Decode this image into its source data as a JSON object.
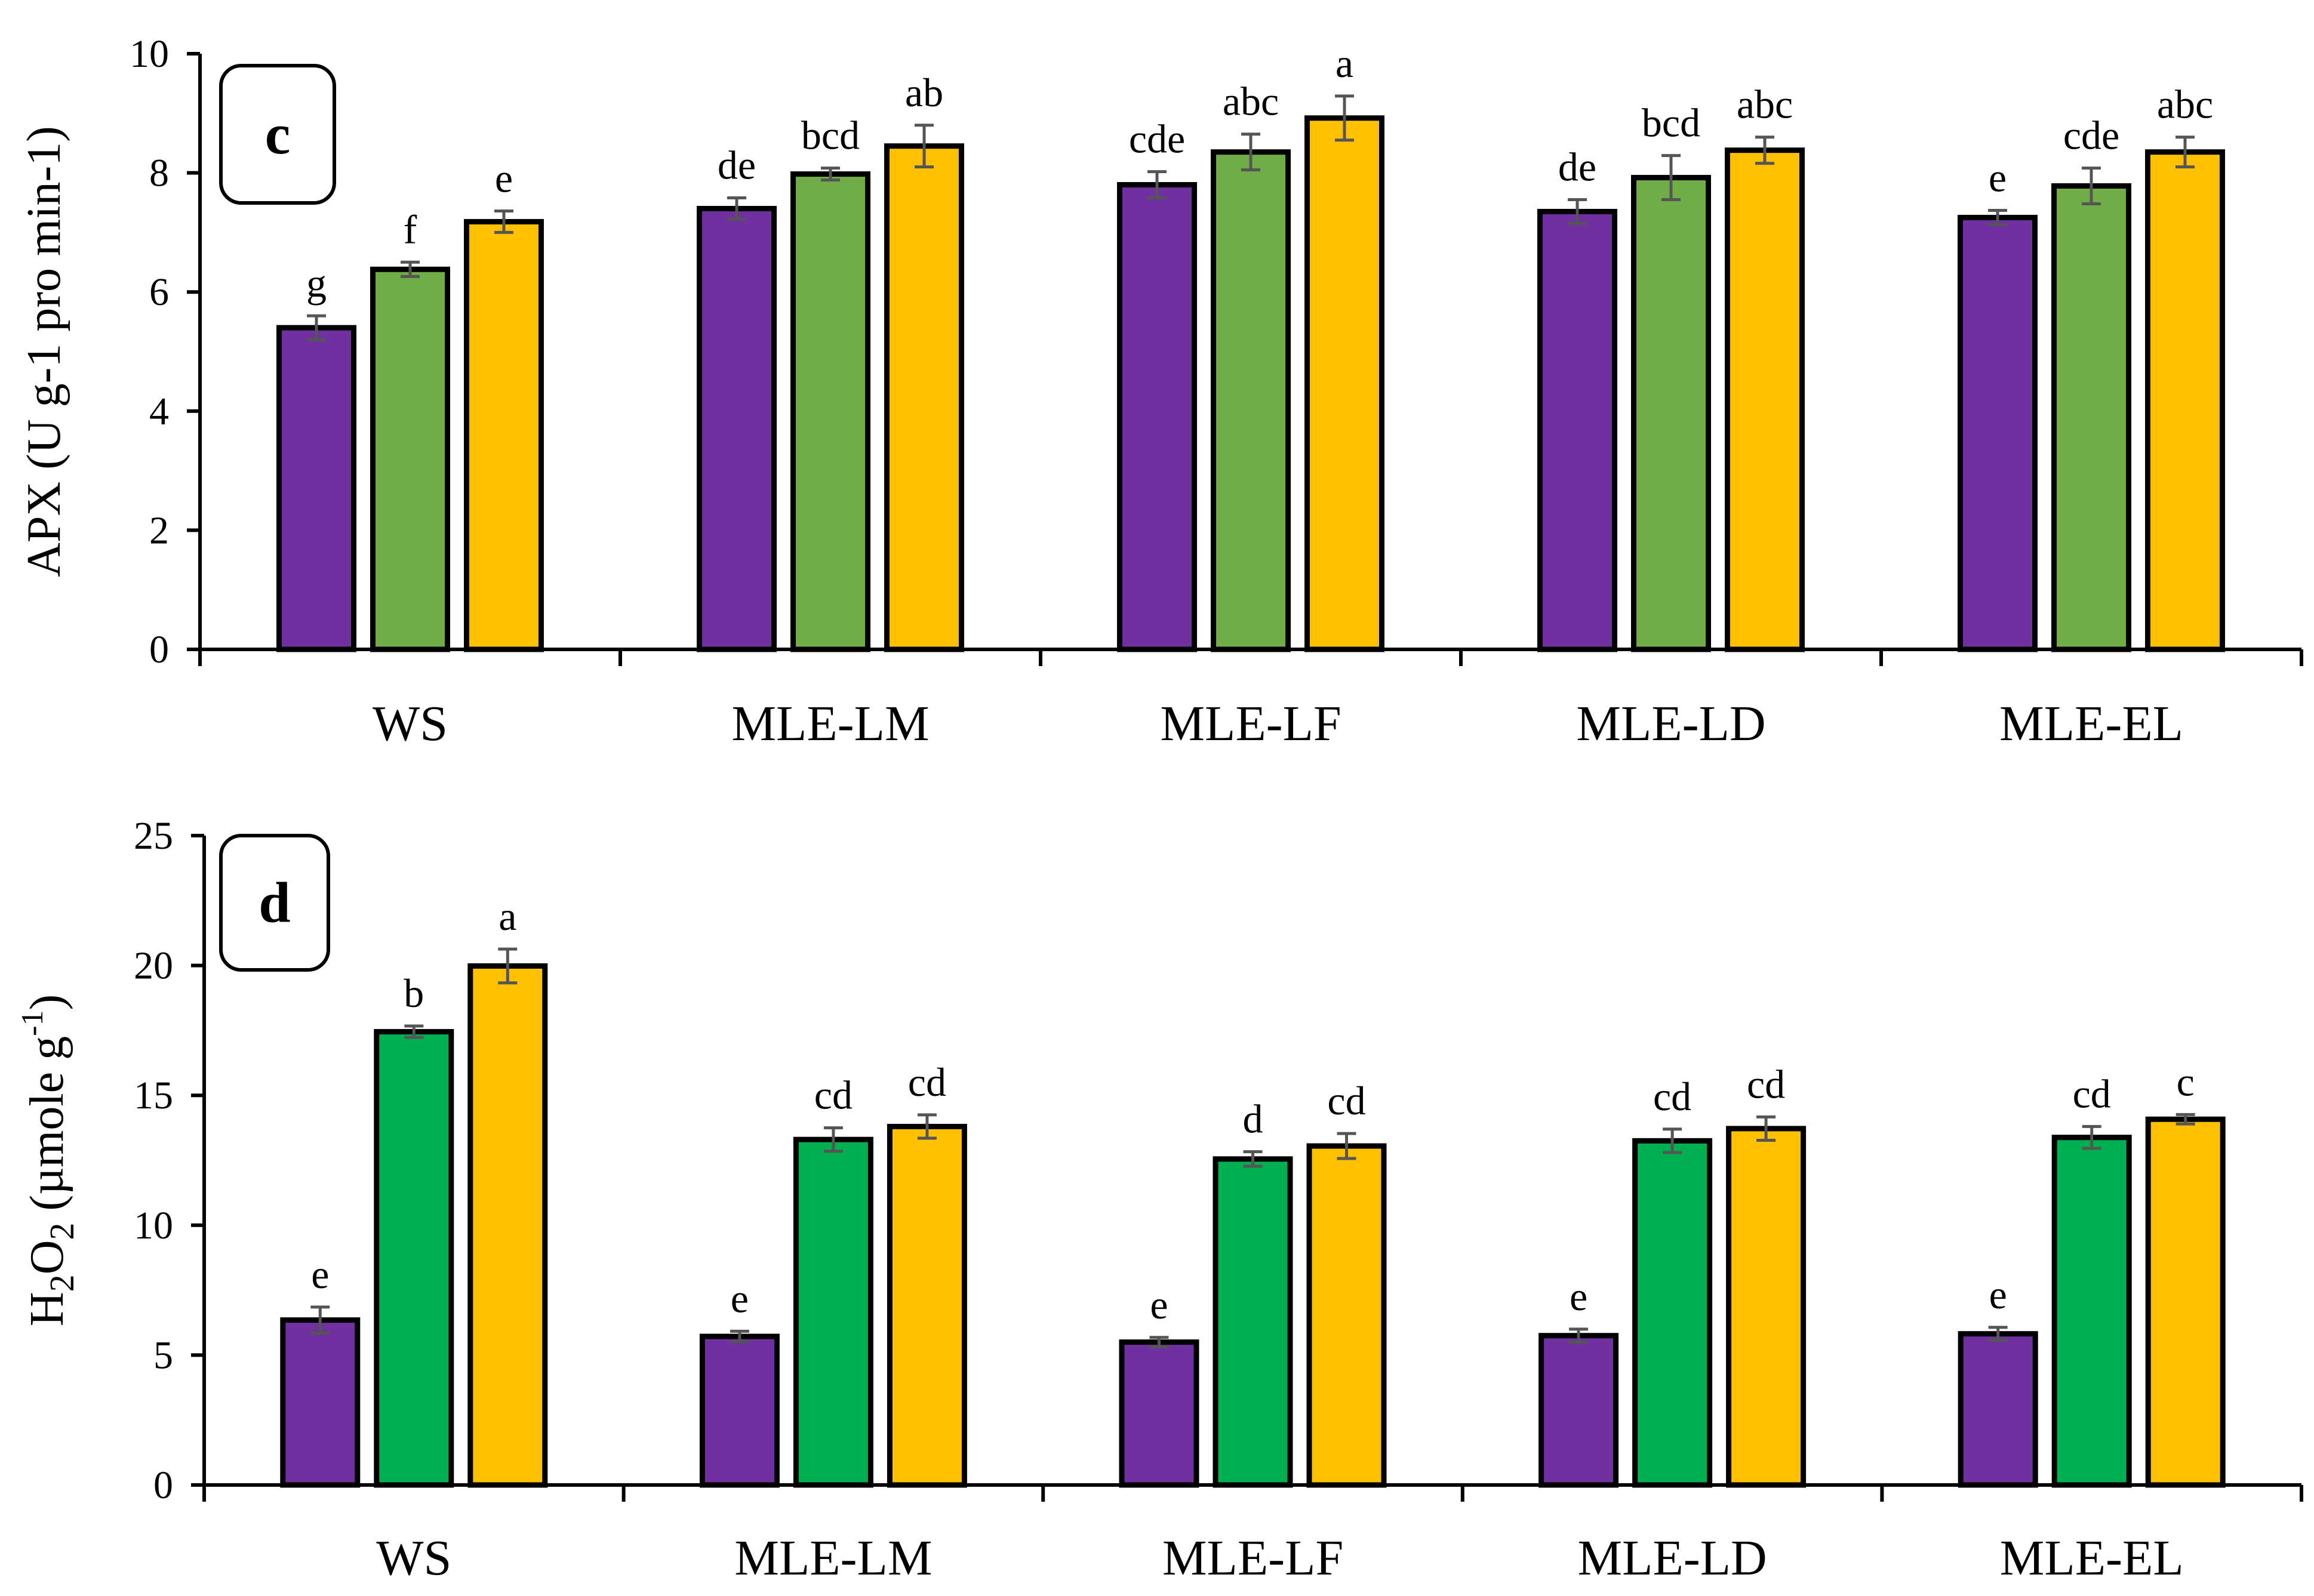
{
  "chart_data": [
    {
      "type": "bar",
      "panel_label": "c",
      "ylabel": "APX (U g-1 pro min-1)",
      "ylim": [
        0,
        10
      ],
      "ytick_step": 2,
      "categories": [
        "WS",
        "MLE-LM",
        "MLE-LF",
        "MLE-LD",
        "MLE-EL"
      ],
      "series": [
        {
          "color": "#7030A0",
          "values": [
            5.4,
            7.4,
            7.8,
            7.35,
            7.25
          ],
          "errors": [
            0.2,
            0.18,
            0.22,
            0.2,
            0.12
          ],
          "labels": [
            "g",
            "de",
            "cde",
            "de",
            "e"
          ]
        },
        {
          "color": "#70AD47",
          "values": [
            6.38,
            7.98,
            8.35,
            7.92,
            7.78
          ],
          "errors": [
            0.12,
            0.1,
            0.3,
            0.37,
            0.3
          ],
          "labels": [
            "f",
            "bcd",
            "abc",
            "bcd",
            "cde"
          ]
        },
        {
          "color": "#FFC000",
          "values": [
            7.18,
            8.45,
            8.92,
            8.38,
            8.35
          ],
          "errors": [
            0.18,
            0.35,
            0.37,
            0.22,
            0.25
          ],
          "labels": [
            "e",
            "ab",
            "a",
            "abc",
            "abc"
          ]
        }
      ]
    },
    {
      "type": "bar",
      "panel_label": "d",
      "ylabel": "H2O2 (µmole g-1)",
      "ylabel_parts": {
        "h": "H",
        "sub1": "2",
        "o": "O",
        "sub2": "2",
        "rest": " (µmole g",
        "sup": "-1",
        "close": ")"
      },
      "ylim": [
        0,
        25
      ],
      "ytick_step": 5,
      "categories": [
        "WS",
        "MLE-LM",
        "MLE-LF",
        "MLE-LD",
        "MLE-EL"
      ],
      "series": [
        {
          "color": "#7030A0",
          "values": [
            6.35,
            5.72,
            5.5,
            5.75,
            5.82
          ],
          "errors": [
            0.5,
            0.2,
            0.18,
            0.25,
            0.25
          ],
          "labels": [
            "e",
            "e",
            "e",
            "e",
            "e"
          ]
        },
        {
          "color": "#00B050",
          "values": [
            17.45,
            13.3,
            12.55,
            13.25,
            13.38
          ],
          "errors": [
            0.22,
            0.45,
            0.28,
            0.45,
            0.42
          ],
          "labels": [
            "b",
            "cd",
            "d",
            "cd",
            "cd"
          ]
        },
        {
          "color": "#FFC000",
          "values": [
            19.98,
            13.8,
            13.05,
            13.72,
            14.08
          ],
          "errors": [
            0.65,
            0.45,
            0.48,
            0.45,
            0.18
          ],
          "labels": [
            "a",
            "cd",
            "cd",
            "cd",
            "c"
          ]
        }
      ]
    }
  ]
}
